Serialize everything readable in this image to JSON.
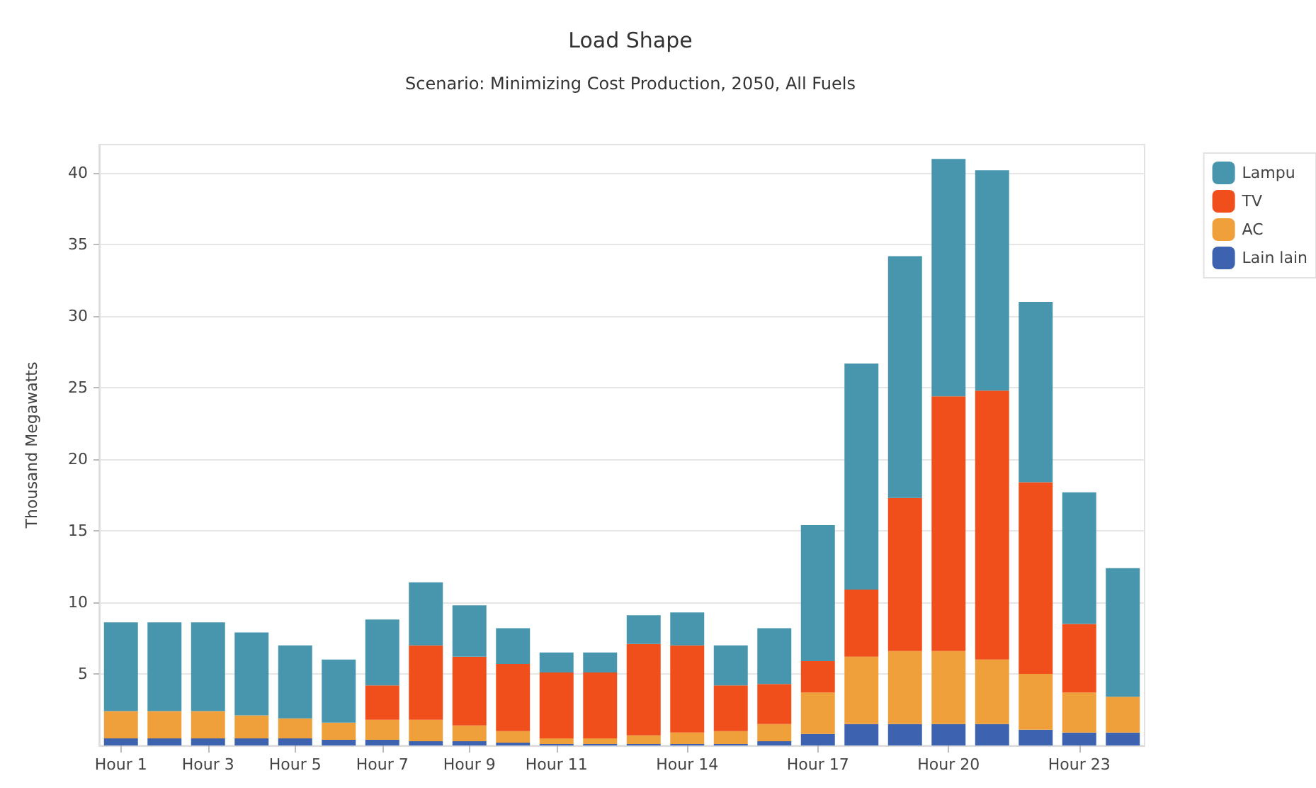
{
  "chart_data": {
    "type": "bar",
    "title": "Load Shape",
    "subtitle": "Scenario: Minimizing Cost Production, 2050, All Fuels",
    "ylabel": "Thousand Megawatts",
    "categories": [
      "Hour 1",
      null,
      "Hour 3",
      null,
      "Hour 5",
      null,
      "Hour 7",
      null,
      "Hour 9",
      null,
      "Hour 11",
      null,
      null,
      "Hour 14",
      null,
      null,
      "Hour 17",
      null,
      null,
      "Hour 20",
      null,
      null,
      "Hour 23",
      null
    ],
    "stacked": true,
    "series": [
      {
        "name": "Lain lain",
        "color": "#3d63b0",
        "values": [
          0.5,
          0.5,
          0.5,
          0.5,
          0.5,
          0.4,
          0.4,
          0.3,
          0.3,
          0.2,
          0.1,
          0.1,
          0.1,
          0.1,
          0.1,
          0.3,
          0.8,
          1.5,
          1.5,
          1.5,
          1.5,
          1.1,
          0.9,
          0.9
        ]
      },
      {
        "name": "AC",
        "color": "#f0a03a",
        "values": [
          1.9,
          1.9,
          1.9,
          1.6,
          1.4,
          1.2,
          1.4,
          1.5,
          1.1,
          0.8,
          0.4,
          0.4,
          0.6,
          0.8,
          0.9,
          1.2,
          2.9,
          4.7,
          5.1,
          5.1,
          4.5,
          3.9,
          2.8,
          2.5
        ]
      },
      {
        "name": "TV",
        "color": "#f04e1a",
        "values": [
          0,
          0,
          0,
          0,
          0,
          0,
          2.4,
          5.2,
          4.8,
          4.7,
          4.6,
          4.6,
          6.4,
          6.1,
          3.2,
          2.8,
          2.2,
          4.7,
          10.7,
          17.8,
          18.8,
          13.4,
          4.8,
          0
        ]
      },
      {
        "name": "Lampu",
        "color": "#4796ad",
        "values": [
          6.2,
          6.2,
          6.2,
          5.8,
          5.1,
          4.4,
          4.6,
          4.4,
          3.6,
          2.5,
          1.4,
          1.4,
          2.0,
          2.3,
          2.8,
          3.9,
          9.5,
          15.8,
          16.9,
          16.6,
          15.4,
          12.6,
          9.2,
          9.0
        ]
      }
    ],
    "ylim": [
      0,
      42
    ],
    "yticks": [
      5,
      10,
      15,
      20,
      25,
      30,
      35,
      40
    ],
    "grid": "y",
    "legend": "right"
  }
}
